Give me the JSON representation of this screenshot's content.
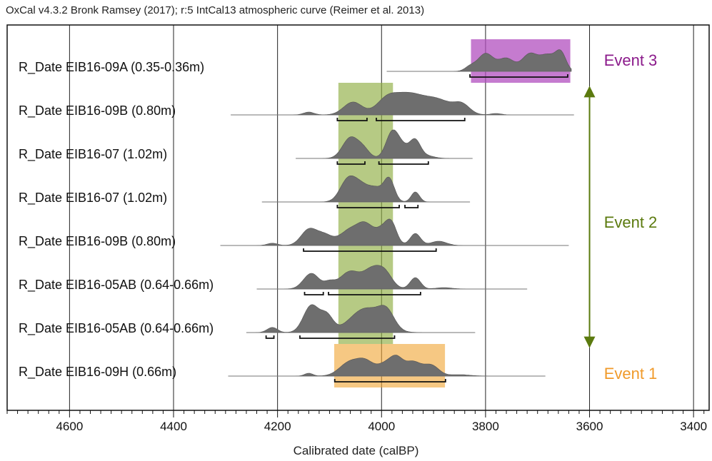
{
  "header": "OxCal v4.3.2 Bronk Ramsey (2017); r:5 IntCal13 atmospheric curve (Reimer et al. 2013)",
  "chart_data": {
    "type": "density-stack",
    "xlabel": "Calibrated date (calBP)",
    "xlim": [
      4720,
      3370
    ],
    "x_reversed": true,
    "x_ticks": [
      4600,
      4400,
      4200,
      4000,
      3800,
      3600,
      3400
    ],
    "grid": true,
    "rows": [
      {
        "label": "R_Date EIB16-09A (0.35-0.36m)",
        "range": [
          3990,
          3635
        ],
        "peaks": [
          [
            3800,
            0.62,
            15
          ],
          [
            3760,
            0.45,
            15
          ],
          [
            3715,
            0.6,
            15
          ],
          [
            3680,
            0.55,
            15
          ],
          [
            3655,
            0.6,
            10
          ],
          [
            3830,
            0.15,
            10
          ]
        ],
        "ranges_95": [
          [
            3830,
            3642
          ]
        ]
      },
      {
        "label": "R_Date EIB16-09B (0.80m)",
        "range": [
          4290,
          3630
        ],
        "peaks": [
          [
            4055,
            0.45,
            18
          ],
          [
            3990,
            0.52,
            20
          ],
          [
            3950,
            0.62,
            25
          ],
          [
            3895,
            0.55,
            30
          ],
          [
            3845,
            0.3,
            15
          ],
          [
            4140,
            0.1,
            10
          ],
          [
            3780,
            0.05,
            10
          ]
        ],
        "ranges_95": [
          [
            4085,
            4028
          ],
          [
            4010,
            3840
          ]
        ]
      },
      {
        "label": "R_Date EIB16-07 (1.02m)",
        "range": [
          4165,
          3825
        ],
        "peaks": [
          [
            4060,
            0.72,
            15
          ],
          [
            4035,
            0.3,
            12
          ],
          [
            3980,
            0.82,
            12
          ],
          [
            3960,
            0.4,
            15
          ],
          [
            3935,
            0.55,
            10
          ],
          [
            3915,
            0.1,
            15
          ]
        ],
        "ranges_95": [
          [
            4085,
            4032
          ],
          [
            4005,
            3910
          ]
        ]
      },
      {
        "label": "R_Date EIB16-07 (1.02m)",
        "range": [
          4230,
          3830
        ],
        "peaks": [
          [
            4065,
            0.75,
            15
          ],
          [
            4040,
            0.5,
            15
          ],
          [
            4010,
            0.45,
            15
          ],
          [
            3985,
            0.75,
            10
          ],
          [
            3935,
            0.35,
            8
          ]
        ],
        "ranges_95": [
          [
            4085,
            3966
          ],
          [
            3955,
            3930
          ]
        ]
      },
      {
        "label": "R_Date EIB16-09B (0.80m)",
        "range": [
          4310,
          3640
        ],
        "peaks": [
          [
            4140,
            0.55,
            15
          ],
          [
            4110,
            0.35,
            15
          ],
          [
            4060,
            0.55,
            20
          ],
          [
            4030,
            0.6,
            15
          ],
          [
            3995,
            0.6,
            15
          ],
          [
            3980,
            0.5,
            10
          ],
          [
            3935,
            0.42,
            10
          ],
          [
            3890,
            0.15,
            15
          ],
          [
            4210,
            0.08,
            10
          ]
        ],
        "ranges_95": [
          [
            4150,
            3895
          ]
        ]
      },
      {
        "label": "R_Date EIB16-05AB (0.64-0.66m)",
        "range": [
          4240,
          3720
        ],
        "peaks": [
          [
            4135,
            0.55,
            15
          ],
          [
            4060,
            0.62,
            20
          ],
          [
            4020,
            0.55,
            15
          ],
          [
            3995,
            0.6,
            15
          ],
          [
            3935,
            0.4,
            10
          ],
          [
            4100,
            0.2,
            10
          ],
          [
            3880,
            0.05,
            15
          ]
        ],
        "ranges_95": [
          [
            4148,
            4112
          ],
          [
            4102,
            3925
          ]
        ]
      },
      {
        "label": "R_Date EIB16-05AB (0.64-0.66m)",
        "range": [
          4260,
          3820
        ],
        "peaks": [
          [
            4135,
            0.95,
            15
          ],
          [
            4105,
            0.55,
            12
          ],
          [
            4030,
            0.85,
            30
          ],
          [
            3990,
            0.55,
            15
          ],
          [
            4210,
            0.18,
            10
          ]
        ],
        "ranges_95": [
          [
            4222,
            4207
          ],
          [
            4157,
            3975
          ]
        ]
      },
      {
        "label": "R_Date EIB16-09H (0.66m)",
        "range": [
          4295,
          3685
        ],
        "peaks": [
          [
            4060,
            0.5,
            20
          ],
          [
            4030,
            0.4,
            15
          ],
          [
            3990,
            0.45,
            18
          ],
          [
            3970,
            0.42,
            12
          ],
          [
            3940,
            0.48,
            15
          ],
          [
            3905,
            0.38,
            15
          ],
          [
            4140,
            0.1,
            8
          ],
          [
            3850,
            0.05,
            20
          ]
        ],
        "ranges_95": [
          [
            4090,
            3877
          ]
        ]
      }
    ],
    "shaded_bands": [
      {
        "x": [
          4083,
          3978
        ],
        "rows": [
          1,
          6
        ],
        "color": "#8fae42",
        "opacity": 0.65
      },
      {
        "x": [
          3828,
          3637
        ],
        "rows": [
          0,
          0
        ],
        "color": "#b14fbf",
        "opacity": 0.75
      },
      {
        "x": [
          4091,
          3878
        ],
        "rows": [
          7,
          7
        ],
        "color": "#f0a431",
        "opacity": 0.6
      }
    ],
    "events": [
      {
        "label": "Event 3",
        "color": "#8b1a8b",
        "row": 0
      },
      {
        "label": "Event 2",
        "color": "#5b7a0e",
        "row_center": 3.5
      },
      {
        "label": "Event 1",
        "color": "#f09a2a",
        "row": 7
      }
    ],
    "event2_arrow": {
      "x": 3600,
      "rows": [
        0.55,
        6.6
      ],
      "color": "#5b7a0e"
    }
  }
}
